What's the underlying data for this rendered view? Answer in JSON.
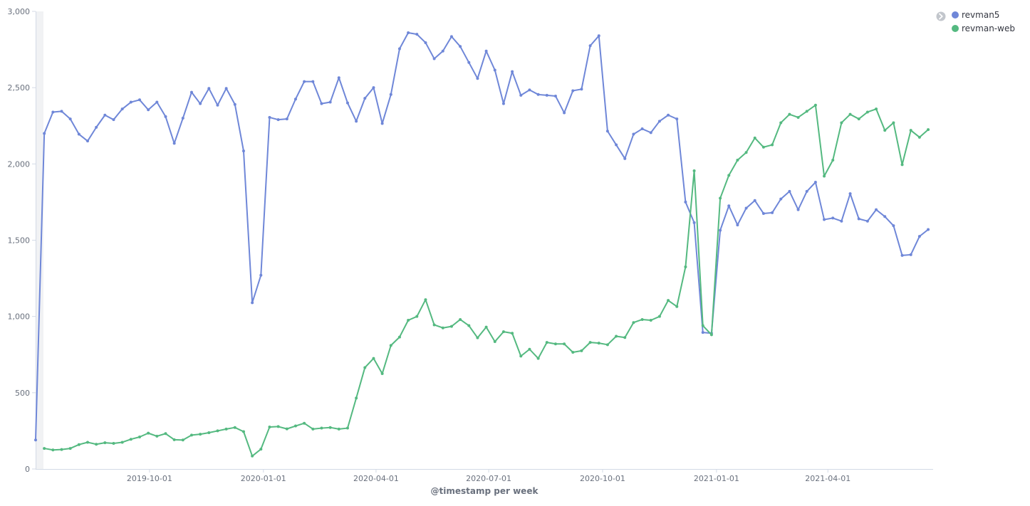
{
  "colors": {
    "revman5": "#6f87d8",
    "revman-web": "#54b980",
    "axis": "#d3dae6",
    "text": "#69707d"
  },
  "legend": {
    "toggle_icon": "chevron-right-icon",
    "items": [
      "revman5",
      "revman-web"
    ]
  },
  "chart_data": {
    "type": "line",
    "xlabel": "@timestamp per week",
    "ylabel": "",
    "ylim": [
      0,
      3000
    ],
    "y_ticks": [
      "0",
      "500",
      "1,000",
      "1,500",
      "2,000",
      "2,500",
      "3,000"
    ],
    "y_tick_values": [
      0,
      500,
      1000,
      1500,
      2000,
      2500,
      3000
    ],
    "x_ticks": [
      "2019-10-01",
      "2020-01-01",
      "2020-04-01",
      "2020-07-01",
      "2020-10-01",
      "2021-01-01",
      "2021-04-01"
    ],
    "x_start": "2019-07-01",
    "x_end": "2021-06-25",
    "grid": false,
    "legend_position": "top-right",
    "series": [
      {
        "name": "revman5",
        "start": "2019-07-01",
        "values": [
          190,
          2200,
          2340,
          2345,
          2295,
          2195,
          2150,
          2240,
          2320,
          2290,
          2360,
          2405,
          2420,
          2355,
          2405,
          2310,
          2135,
          2300,
          2470,
          2395,
          2495,
          2385,
          2495,
          2390,
          2085,
          1090,
          1270,
          2305,
          2290,
          2295,
          2425,
          2540,
          2540,
          2395,
          2405,
          2565,
          2400,
          2280,
          2430,
          2500,
          2265,
          2455,
          2755,
          2860,
          2850,
          2795,
          2690,
          2740,
          2835,
          2770,
          2665,
          2560,
          2740,
          2615,
          2395,
          2605,
          2450,
          2485,
          2455,
          2450,
          2445,
          2335,
          2480,
          2490,
          2775,
          2840,
          2215,
          2125,
          2035,
          2195,
          2230,
          2205,
          2280,
          2320,
          2295,
          1750,
          1615,
          895,
          890,
          1565,
          1725,
          1600,
          1710,
          1760,
          1675,
          1680,
          1770,
          1820,
          1700,
          1820,
          1880,
          1635,
          1645,
          1625,
          1805,
          1640,
          1625,
          1700,
          1655,
          1595,
          1400,
          1405,
          1525,
          1570
        ]
      },
      {
        "name": "revman-web",
        "start": "2019-07-08",
        "values": [
          135,
          125,
          128,
          135,
          160,
          175,
          162,
          172,
          168,
          175,
          195,
          210,
          235,
          215,
          232,
          192,
          190,
          222,
          228,
          238,
          250,
          262,
          272,
          245,
          85,
          130,
          275,
          278,
          263,
          282,
          300,
          262,
          268,
          272,
          262,
          268,
          465,
          665,
          725,
          625,
          810,
          865,
          975,
          1000,
          1110,
          945,
          925,
          935,
          980,
          940,
          860,
          930,
          835,
          900,
          890,
          740,
          785,
          725,
          830,
          820,
          820,
          765,
          775,
          830,
          825,
          815,
          870,
          862,
          960,
          980,
          975,
          1000,
          1105,
          1065,
          1325,
          1955,
          940,
          880,
          1775,
          1925,
          2025,
          2075,
          2170,
          2110,
          2125,
          2270,
          2325,
          2305,
          2345,
          2385,
          1920,
          2025,
          2270,
          2325,
          2295,
          2340,
          2360,
          2220,
          2270,
          1995,
          2220,
          2175,
          2225
        ]
      }
    ]
  }
}
